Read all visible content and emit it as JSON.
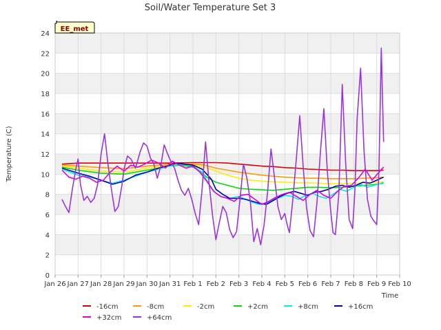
{
  "chart_data": {
    "type": "line",
    "title": "Soil/Water Temperature Set 3",
    "xlabel": "Time",
    "ylabel": "Temperature (C)",
    "badge": "EE_met",
    "ylim": [
      0,
      24
    ],
    "yticks": [
      0,
      2,
      4,
      6,
      8,
      10,
      12,
      14,
      16,
      18,
      20,
      22,
      24
    ],
    "xlim": [
      0,
      15
    ],
    "xticks": [
      {
        "pos": 0,
        "label": "Jan 26"
      },
      {
        "pos": 1,
        "label": "Jan 27"
      },
      {
        "pos": 2,
        "label": "Jan 28"
      },
      {
        "pos": 3,
        "label": "Jan 29"
      },
      {
        "pos": 4,
        "label": "Jan 30"
      },
      {
        "pos": 5,
        "label": "Jan 31"
      },
      {
        "pos": 6,
        "label": "Feb 1"
      },
      {
        "pos": 7,
        "label": "Feb 2"
      },
      {
        "pos": 8,
        "label": "Feb 3"
      },
      {
        "pos": 9,
        "label": "Feb 4"
      },
      {
        "pos": 10,
        "label": "Feb 5"
      },
      {
        "pos": 11,
        "label": "Feb 6"
      },
      {
        "pos": 12,
        "label": "Feb 7"
      },
      {
        "pos": 13,
        "label": "Feb 8"
      },
      {
        "pos": 14,
        "label": "Feb 9"
      },
      {
        "pos": 15,
        "label": "Feb 10"
      }
    ],
    "grid": true,
    "legend_position": "bottom",
    "series": [
      {
        "name": "-16cm",
        "color": "#dd0000",
        "x": [
          0.3,
          1,
          2,
          3,
          4,
          5,
          6,
          7,
          7.5,
          8,
          8.5,
          9,
          9.5,
          10,
          10.5,
          11,
          11.5,
          12,
          12.5,
          13,
          13.5,
          14,
          14.3
        ],
        "y": [
          11.0,
          11.1,
          11.1,
          11.1,
          11.1,
          11.1,
          11.15,
          11.15,
          11.1,
          11.0,
          10.9,
          10.8,
          10.75,
          10.65,
          10.6,
          10.5,
          10.45,
          10.4,
          10.4,
          10.35,
          10.35,
          10.35,
          10.4
        ]
      },
      {
        "name": "-8cm",
        "color": "#ff9900",
        "x": [
          0.3,
          1,
          2,
          3,
          4,
          5,
          6,
          6.5,
          7,
          7.5,
          8,
          8.5,
          9,
          9.5,
          10,
          10.5,
          11,
          11.5,
          12,
          12.5,
          13,
          13.5,
          14,
          14.3
        ],
        "y": [
          10.9,
          10.8,
          10.65,
          10.55,
          10.8,
          11.0,
          11.0,
          10.9,
          10.6,
          10.4,
          10.2,
          10.05,
          9.9,
          9.8,
          9.7,
          9.65,
          9.6,
          9.6,
          9.55,
          9.55,
          9.55,
          9.6,
          9.65,
          9.7
        ]
      },
      {
        "name": "-2cm",
        "color": "#ffee00",
        "x": [
          0.3,
          1,
          2,
          3,
          4,
          5,
          5.5,
          6,
          6.5,
          7,
          7.5,
          8,
          8.5,
          9,
          9.5,
          10,
          10.5,
          11,
          11.5,
          12,
          12.5,
          13,
          13.5,
          14,
          14.3
        ],
        "y": [
          10.8,
          10.6,
          10.3,
          10.2,
          10.6,
          10.9,
          11.0,
          10.9,
          10.7,
          10.3,
          9.9,
          9.6,
          9.4,
          9.3,
          9.25,
          9.2,
          9.15,
          9.15,
          9.1,
          9.05,
          9.05,
          9.1,
          9.15,
          9.2,
          9.25
        ]
      },
      {
        "name": "+2cm",
        "color": "#00dd00",
        "x": [
          0.3,
          1,
          2,
          3,
          4,
          5,
          5.5,
          6,
          6.3,
          6.6,
          7,
          7.5,
          8,
          8.5,
          9,
          9.5,
          10,
          10.5,
          11,
          11.5,
          12,
          12.5,
          13,
          13.5,
          14,
          14.3
        ],
        "y": [
          10.7,
          10.4,
          10.1,
          10.0,
          10.4,
          10.8,
          10.9,
          10.7,
          10.3,
          9.7,
          9.2,
          8.9,
          8.6,
          8.5,
          8.45,
          8.4,
          8.5,
          8.6,
          8.7,
          8.7,
          8.65,
          8.7,
          8.8,
          8.9,
          9.0,
          9.1
        ]
      },
      {
        "name": "+8cm",
        "color": "#00eeee",
        "x": [
          0.3,
          1,
          1.5,
          2,
          2.5,
          3,
          3.5,
          4,
          4.5,
          5,
          5.5,
          6,
          6.4,
          6.7,
          7,
          7.3,
          7.6,
          8,
          8.3,
          8.6,
          8.9,
          9.2,
          9.5,
          9.8,
          10,
          10.3,
          10.6,
          10.9,
          11.2,
          11.5,
          11.8,
          12.1,
          12.4,
          12.7,
          13,
          13.3,
          13.6,
          13.9,
          14.2,
          14.3
        ],
        "y": [
          10.5,
          9.9,
          9.7,
          9.4,
          9.1,
          9.4,
          9.8,
          10.2,
          10.5,
          10.8,
          11.0,
          10.8,
          10.2,
          9.0,
          8.1,
          7.7,
          7.6,
          7.8,
          7.5,
          7.2,
          7.0,
          7.1,
          7.5,
          7.7,
          7.9,
          7.8,
          7.5,
          7.9,
          8.1,
          7.8,
          7.6,
          8.0,
          8.5,
          8.3,
          8.7,
          9.0,
          8.7,
          8.9,
          9.1,
          9.2
        ]
      },
      {
        "name": "+16cm",
        "color": "#0000aa",
        "x": [
          0.3,
          1,
          1.5,
          2,
          2.5,
          3,
          3.5,
          4,
          4.5,
          5,
          5.3,
          5.6,
          6,
          6.4,
          6.8,
          7,
          7.3,
          7.6,
          8,
          8.3,
          8.6,
          8.9,
          9.2,
          9.5,
          9.8,
          10.1,
          10.4,
          10.7,
          11,
          11.3,
          11.6,
          11.9,
          12.2,
          12.5,
          12.8,
          13.1,
          13.4,
          13.7,
          14,
          14.3
        ],
        "y": [
          10.6,
          10.1,
          9.8,
          9.4,
          9.0,
          9.3,
          9.9,
          10.2,
          10.6,
          10.9,
          11.1,
          11.0,
          10.9,
          10.5,
          9.5,
          8.5,
          8.0,
          7.6,
          7.6,
          7.5,
          7.3,
          7.1,
          7.0,
          7.4,
          7.8,
          8.1,
          8.3,
          8.1,
          7.9,
          8.2,
          8.3,
          8.5,
          8.8,
          8.9,
          8.7,
          8.9,
          9.2,
          9.1,
          9.4,
          9.7
        ]
      },
      {
        "name": "+32cm",
        "color": "#dd00dd",
        "x": [
          0.3,
          0.6,
          0.9,
          1.2,
          1.5,
          1.8,
          2.1,
          2.4,
          2.7,
          3.0,
          3.3,
          3.6,
          3.9,
          4.2,
          4.5,
          4.8,
          5.1,
          5.4,
          5.7,
          6.0,
          6.3,
          6.6,
          6.9,
          7.2,
          7.5,
          7.8,
          8.1,
          8.4,
          8.7,
          9.0,
          9.3,
          9.6,
          9.9,
          10.2,
          10.5,
          10.8,
          11.1,
          11.4,
          11.7,
          12.0,
          12.3,
          12.6,
          12.9,
          13.2,
          13.5,
          13.8,
          14.1,
          14.3
        ],
        "y": [
          10.4,
          9.7,
          9.5,
          9.8,
          9.6,
          9.2,
          9.4,
          10.2,
          10.8,
          10.3,
          10.9,
          10.7,
          11.0,
          11.4,
          11.1,
          10.6,
          11.3,
          10.9,
          10.6,
          10.8,
          10.2,
          9.3,
          8.3,
          7.8,
          7.6,
          7.3,
          7.9,
          8.0,
          7.5,
          7.0,
          7.3,
          7.7,
          8.0,
          8.2,
          7.8,
          7.4,
          8.0,
          8.4,
          7.9,
          7.6,
          8.3,
          8.8,
          8.9,
          9.6,
          10.5,
          9.4,
          10.2,
          10.7
        ]
      },
      {
        "name": "+64cm",
        "color": "#9933dd",
        "x": [
          0.3,
          0.45,
          0.6,
          0.75,
          0.9,
          1.0,
          1.1,
          1.25,
          1.4,
          1.55,
          1.7,
          1.85,
          2.0,
          2.15,
          2.3,
          2.45,
          2.6,
          2.75,
          2.9,
          3.0,
          3.15,
          3.3,
          3.5,
          3.7,
          3.85,
          4.0,
          4.15,
          4.3,
          4.45,
          4.6,
          4.75,
          4.9,
          5.05,
          5.2,
          5.35,
          5.5,
          5.65,
          5.8,
          5.95,
          6.1,
          6.25,
          6.4,
          6.55,
          6.7,
          6.85,
          7.0,
          7.15,
          7.3,
          7.45,
          7.6,
          7.75,
          7.9,
          8.05,
          8.2,
          8.35,
          8.5,
          8.65,
          8.8,
          8.95,
          9.1,
          9.25,
          9.4,
          9.55,
          9.7,
          9.85,
          10.0,
          10.1,
          10.2,
          10.35,
          10.5,
          10.65,
          10.8,
          10.95,
          11.1,
          11.25,
          11.4,
          11.55,
          11.7,
          11.85,
          12.0,
          12.1,
          12.2,
          12.35,
          12.5,
          12.65,
          12.8,
          12.95,
          13.05,
          13.15,
          13.3,
          13.45,
          13.6,
          13.75,
          13.9,
          14.0,
          14.1,
          14.2,
          14.3
        ],
        "y": [
          7.5,
          6.8,
          6.2,
          8.5,
          10.5,
          11.5,
          9.0,
          7.4,
          7.8,
          7.2,
          7.6,
          9.0,
          12.0,
          14.0,
          11.0,
          8.5,
          6.3,
          6.8,
          8.8,
          10.5,
          11.8,
          11.5,
          10.6,
          12.2,
          13.1,
          12.8,
          11.6,
          11.0,
          9.6,
          10.8,
          12.9,
          12.0,
          11.2,
          10.6,
          9.4,
          8.4,
          7.9,
          8.6,
          7.5,
          6.1,
          5.0,
          8.5,
          13.2,
          9.2,
          6.0,
          3.5,
          5.2,
          6.8,
          6.2,
          4.5,
          3.7,
          4.3,
          7.5,
          11.0,
          9.6,
          7.3,
          3.3,
          4.6,
          3.0,
          5.0,
          8.2,
          12.5,
          9.7,
          6.8,
          5.5,
          6.1,
          5.0,
          4.2,
          7.5,
          11.5,
          15.8,
          10.7,
          6.6,
          4.4,
          3.8,
          7.2,
          12.2,
          16.5,
          10.3,
          6.3,
          4.2,
          4.0,
          8.0,
          18.9,
          11.0,
          5.5,
          4.6,
          8.3,
          15.5,
          20.5,
          12.3,
          7.5,
          5.8,
          5.3,
          5.0,
          10.5,
          22.5,
          13.2
        ]
      }
    ]
  }
}
